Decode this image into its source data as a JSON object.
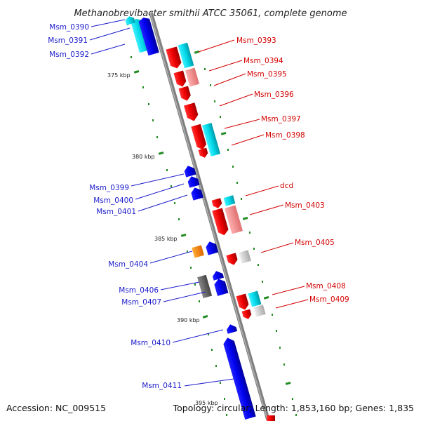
{
  "title": "Methanobrevibacter smithii ATCC 35061, complete genome",
  "accession_text": "Accession: NC_009515",
  "summary_text": "Topology: circular; Length: 1,853,160 bp; Genes: 1,835",
  "kbp_labels": [
    "375 kbp",
    "380 kbp",
    "385 kbp",
    "390 kbp",
    "395 kbp"
  ],
  "genes_left": [
    "Msm_0390",
    "Msm_0391",
    "Msm_0392",
    "Msm_0399",
    "Msm_0400",
    "Msm_0401",
    "Msm_0404",
    "Msm_0406",
    "Msm_0407",
    "Msm_0410",
    "Msm_0411"
  ],
  "genes_right": [
    "Msm_0393",
    "Msm_0394",
    "Msm_0395",
    "Msm_0396",
    "Msm_0397",
    "Msm_0398",
    "dcd",
    "Msm_0403",
    "Msm_0405",
    "Msm_0408",
    "Msm_0409"
  ],
  "colors": {
    "forward_gene": "#ff0000",
    "reverse_gene": "#0000ff",
    "rna_gene": "#00d8e8",
    "special_orange": "#ff8800",
    "pseudo_gray": "#555555",
    "backbone": "#888888",
    "ruler_ticks": "#228b22",
    "left_label": "#1a1acc",
    "right_label": "#d40000"
  }
}
